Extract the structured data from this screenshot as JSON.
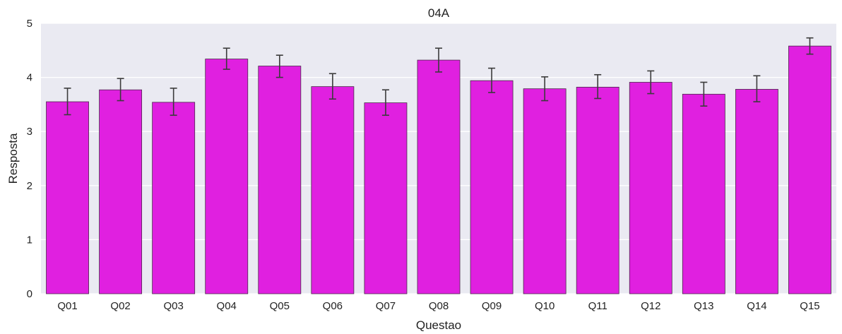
{
  "chart_data": {
    "type": "bar",
    "title": "04A",
    "xlabel": "Questao",
    "ylabel": "Resposta",
    "categories": [
      "Q01",
      "Q02",
      "Q03",
      "Q04",
      "Q05",
      "Q06",
      "Q07",
      "Q08",
      "Q09",
      "Q10",
      "Q11",
      "Q12",
      "Q13",
      "Q14",
      "Q15"
    ],
    "values": [
      3.55,
      3.77,
      3.54,
      4.34,
      4.21,
      3.83,
      3.53,
      4.32,
      3.94,
      3.79,
      3.82,
      3.91,
      3.69,
      3.78,
      4.58
    ],
    "error_low": [
      3.31,
      3.57,
      3.3,
      4.15,
      4.0,
      3.6,
      3.3,
      4.1,
      3.72,
      3.57,
      3.61,
      3.7,
      3.47,
      3.55,
      4.43
    ],
    "error_high": [
      3.8,
      3.98,
      3.8,
      4.54,
      4.41,
      4.07,
      3.77,
      4.54,
      4.17,
      4.01,
      4.05,
      4.12,
      3.91,
      4.03,
      4.73
    ],
    "ylim": [
      0,
      5
    ],
    "yticks": [
      0,
      1,
      2,
      3,
      4,
      5
    ],
    "grid": true,
    "bar_color": "#e020e0",
    "bar_edge_color": "#4a2a4a",
    "errorbar_color": "#3b3b3b",
    "background_color": "#eaeaf2",
    "grid_color": "#ffffff"
  }
}
